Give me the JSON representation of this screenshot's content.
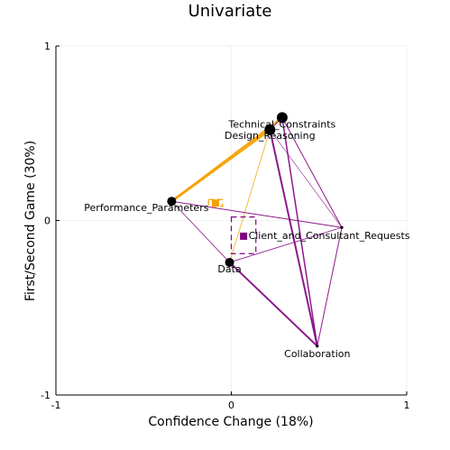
{
  "chart_data": {
    "type": "scatter",
    "title": "Univariate",
    "xlabel": "Confidence Change (18%)",
    "ylabel": "First/Second Game (30%)",
    "xlim": [
      -1,
      1
    ],
    "ylim": [
      -1,
      1
    ],
    "xticks": [
      -1,
      0,
      1
    ],
    "yticks": [
      -1,
      0,
      1
    ],
    "xtick_labels": [
      "-1",
      "0",
      "1"
    ],
    "ytick_labels": [
      "-1",
      "0",
      "1"
    ],
    "grid": true,
    "colors": {
      "orange": "#f5a000",
      "purple": "#800080",
      "node": "#000000"
    },
    "nodes": [
      {
        "name": "Technical_Constraints",
        "x": 0.29,
        "y": 0.59,
        "size": "large"
      },
      {
        "name": "Design_Reasoning",
        "x": 0.22,
        "y": 0.52,
        "size": "large"
      },
      {
        "name": "Performance_Parameters",
        "x": -0.34,
        "y": 0.11,
        "size": "medium"
      },
      {
        "name": "Client_and_Consultant_Requests",
        "x": 0.63,
        "y": -0.04,
        "size": "tiny"
      },
      {
        "name": "Data",
        "x": -0.01,
        "y": -0.24,
        "size": "medium"
      },
      {
        "name": "Collaboration",
        "x": 0.49,
        "y": -0.72,
        "size": "tiny"
      }
    ],
    "edges": [
      {
        "from": "Performance_Parameters",
        "to": "Design_Reasoning",
        "color": "orange",
        "width": 3
      },
      {
        "from": "Performance_Parameters",
        "to": "Technical_Constraints",
        "color": "orange",
        "width": 2
      },
      {
        "from": "Design_Reasoning",
        "to": "Data",
        "color": "orange",
        "width": 0.8
      },
      {
        "from": "Technical_Constraints",
        "to": "Collaboration",
        "color": "purple",
        "width": 1.5
      },
      {
        "from": "Design_Reasoning",
        "to": "Collaboration",
        "color": "purple",
        "width": 2
      },
      {
        "from": "Technical_Constraints",
        "to": "Client_and_Consultant_Requests",
        "color": "purple",
        "width": 1
      },
      {
        "from": "Design_Reasoning",
        "to": "Client_and_Consultant_Requests",
        "color": "purple",
        "width": 0.6
      },
      {
        "from": "Performance_Parameters",
        "to": "Client_and_Consultant_Requests",
        "color": "purple",
        "width": 1
      },
      {
        "from": "Performance_Parameters",
        "to": "Data",
        "color": "purple",
        "width": 0.8
      },
      {
        "from": "Data",
        "to": "Collaboration",
        "color": "purple",
        "width": 2
      },
      {
        "from": "Data",
        "to": "Client_and_Consultant_Requests",
        "color": "purple",
        "width": 0.8
      },
      {
        "from": "Collaboration",
        "to": "Client_and_Consultant_Requests",
        "color": "purple",
        "width": 1
      },
      {
        "from": "Design_Reasoning",
        "to": "Technical_Constraints",
        "color": "purple",
        "width": 1
      }
    ],
    "means": [
      {
        "color": "orange",
        "x": -0.09,
        "y": 0.1,
        "box": [
          -0.13,
          -0.05,
          0.08,
          0.12
        ]
      },
      {
        "color": "purple",
        "x": 0.07,
        "y": -0.09,
        "box": [
          0.0,
          0.14,
          -0.19,
          0.02
        ]
      }
    ]
  }
}
